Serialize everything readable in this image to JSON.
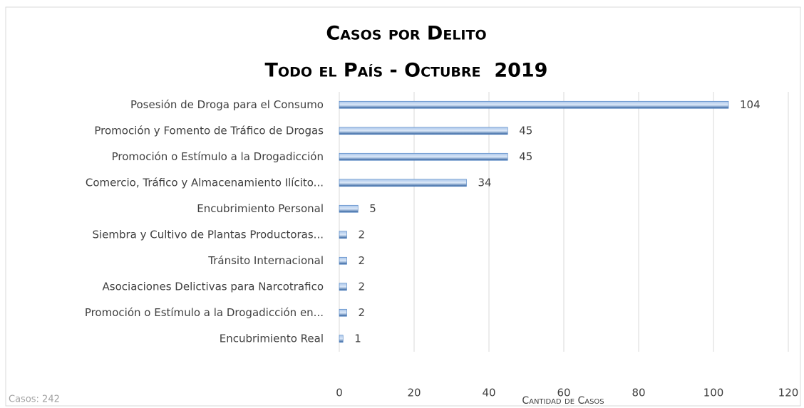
{
  "chart_data": {
    "type": "bar",
    "orientation": "horizontal",
    "title": "Casos por Delito",
    "subtitle": "Todo el País - Octubre  2019",
    "categories": [
      "Posesión de Droga para el Consumo",
      "Promoción y Fomento de Tráfico de Drogas",
      "Promoción o Estímulo a la Drogadicción",
      "Comercio, Tráfico y Almacenamiento Ilícito...",
      "Encubrimiento Personal",
      "Siembra y Cultivo de Plantas Productoras...",
      "Tránsito Internacional",
      "Asociaciones Delictivas para Narcotrafico",
      "Promoción o Estímulo a la Drogadicción en...",
      "Encubrimiento Real"
    ],
    "values": [
      104,
      45,
      45,
      34,
      5,
      2,
      2,
      2,
      2,
      1
    ],
    "color": "#4a7fc0",
    "xlim": [
      0,
      120
    ],
    "xticks": [
      0,
      20,
      40,
      60,
      80,
      100,
      120
    ],
    "grid": true,
    "xlabel": "Cantidad de Casos",
    "annotation": "Casos: 242"
  }
}
